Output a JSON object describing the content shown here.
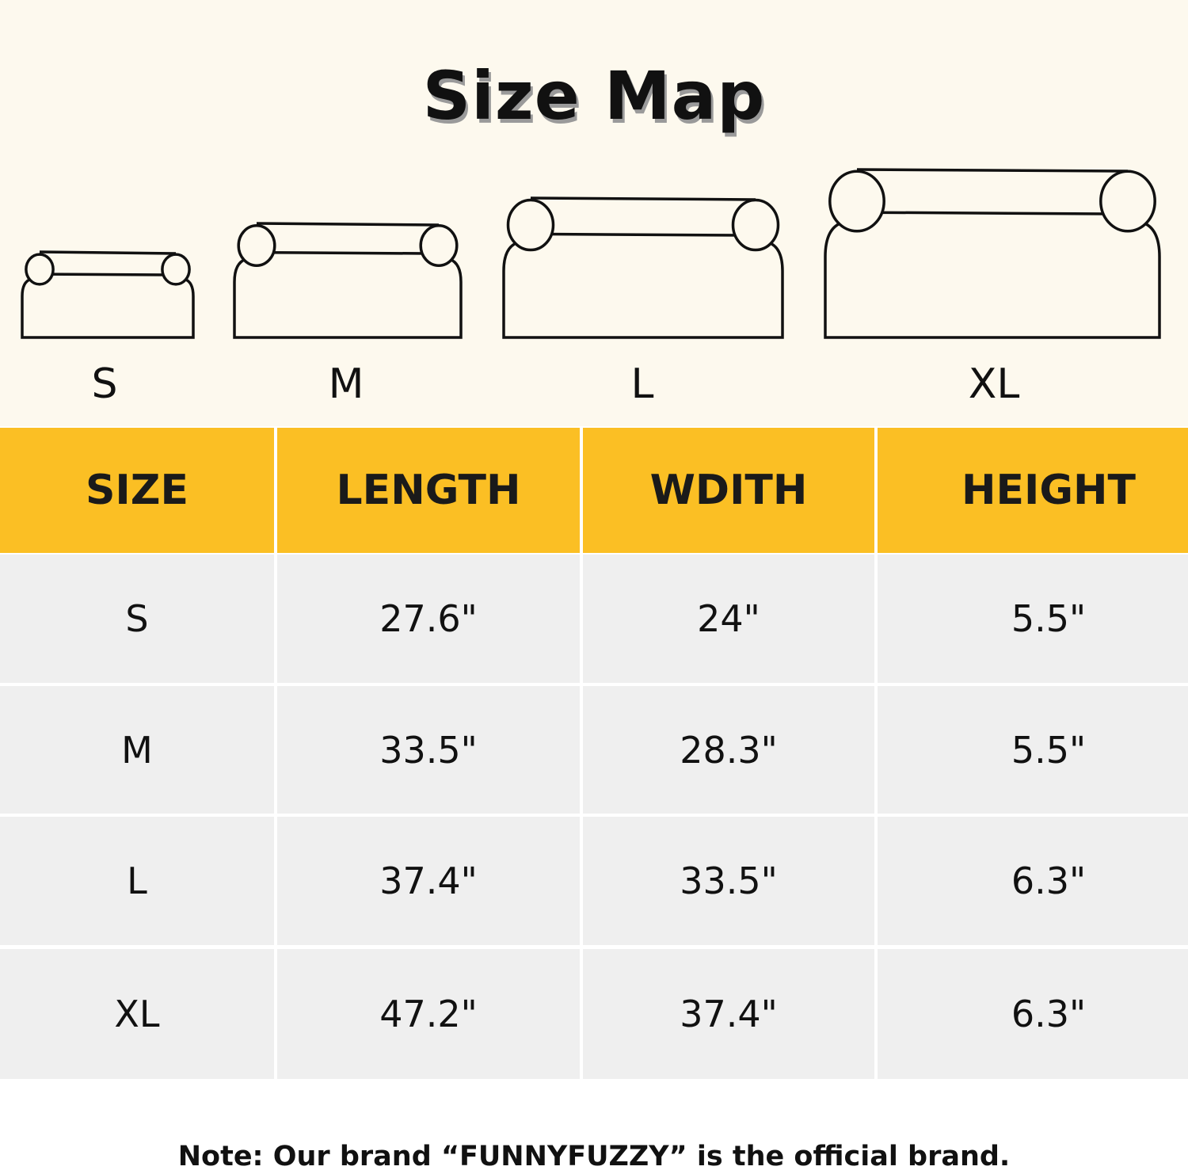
{
  "title": "Size Map",
  "bed_sizes": [
    "S",
    "M",
    "L",
    "XL"
  ],
  "table": {
    "headers": [
      "SIZE",
      "LENGTH",
      "WDITH",
      "HEIGHT"
    ],
    "rows": [
      [
        "S",
        "27.6\"",
        "24\"",
        "5.5\""
      ],
      [
        "M",
        "33.5\"",
        "28.3\"",
        "5.5\""
      ],
      [
        "L",
        "37.4\"",
        "33.5\"",
        "6.3\""
      ],
      [
        "XL",
        "47.2\"",
        "37.4\"",
        "6.3\""
      ]
    ]
  },
  "note": "Note: Our brand “FUNNYFUZZY” is the official brand.",
  "colors": {
    "header": "#fbbf24",
    "background": "#fdf9ee",
    "row": "#efefef"
  }
}
